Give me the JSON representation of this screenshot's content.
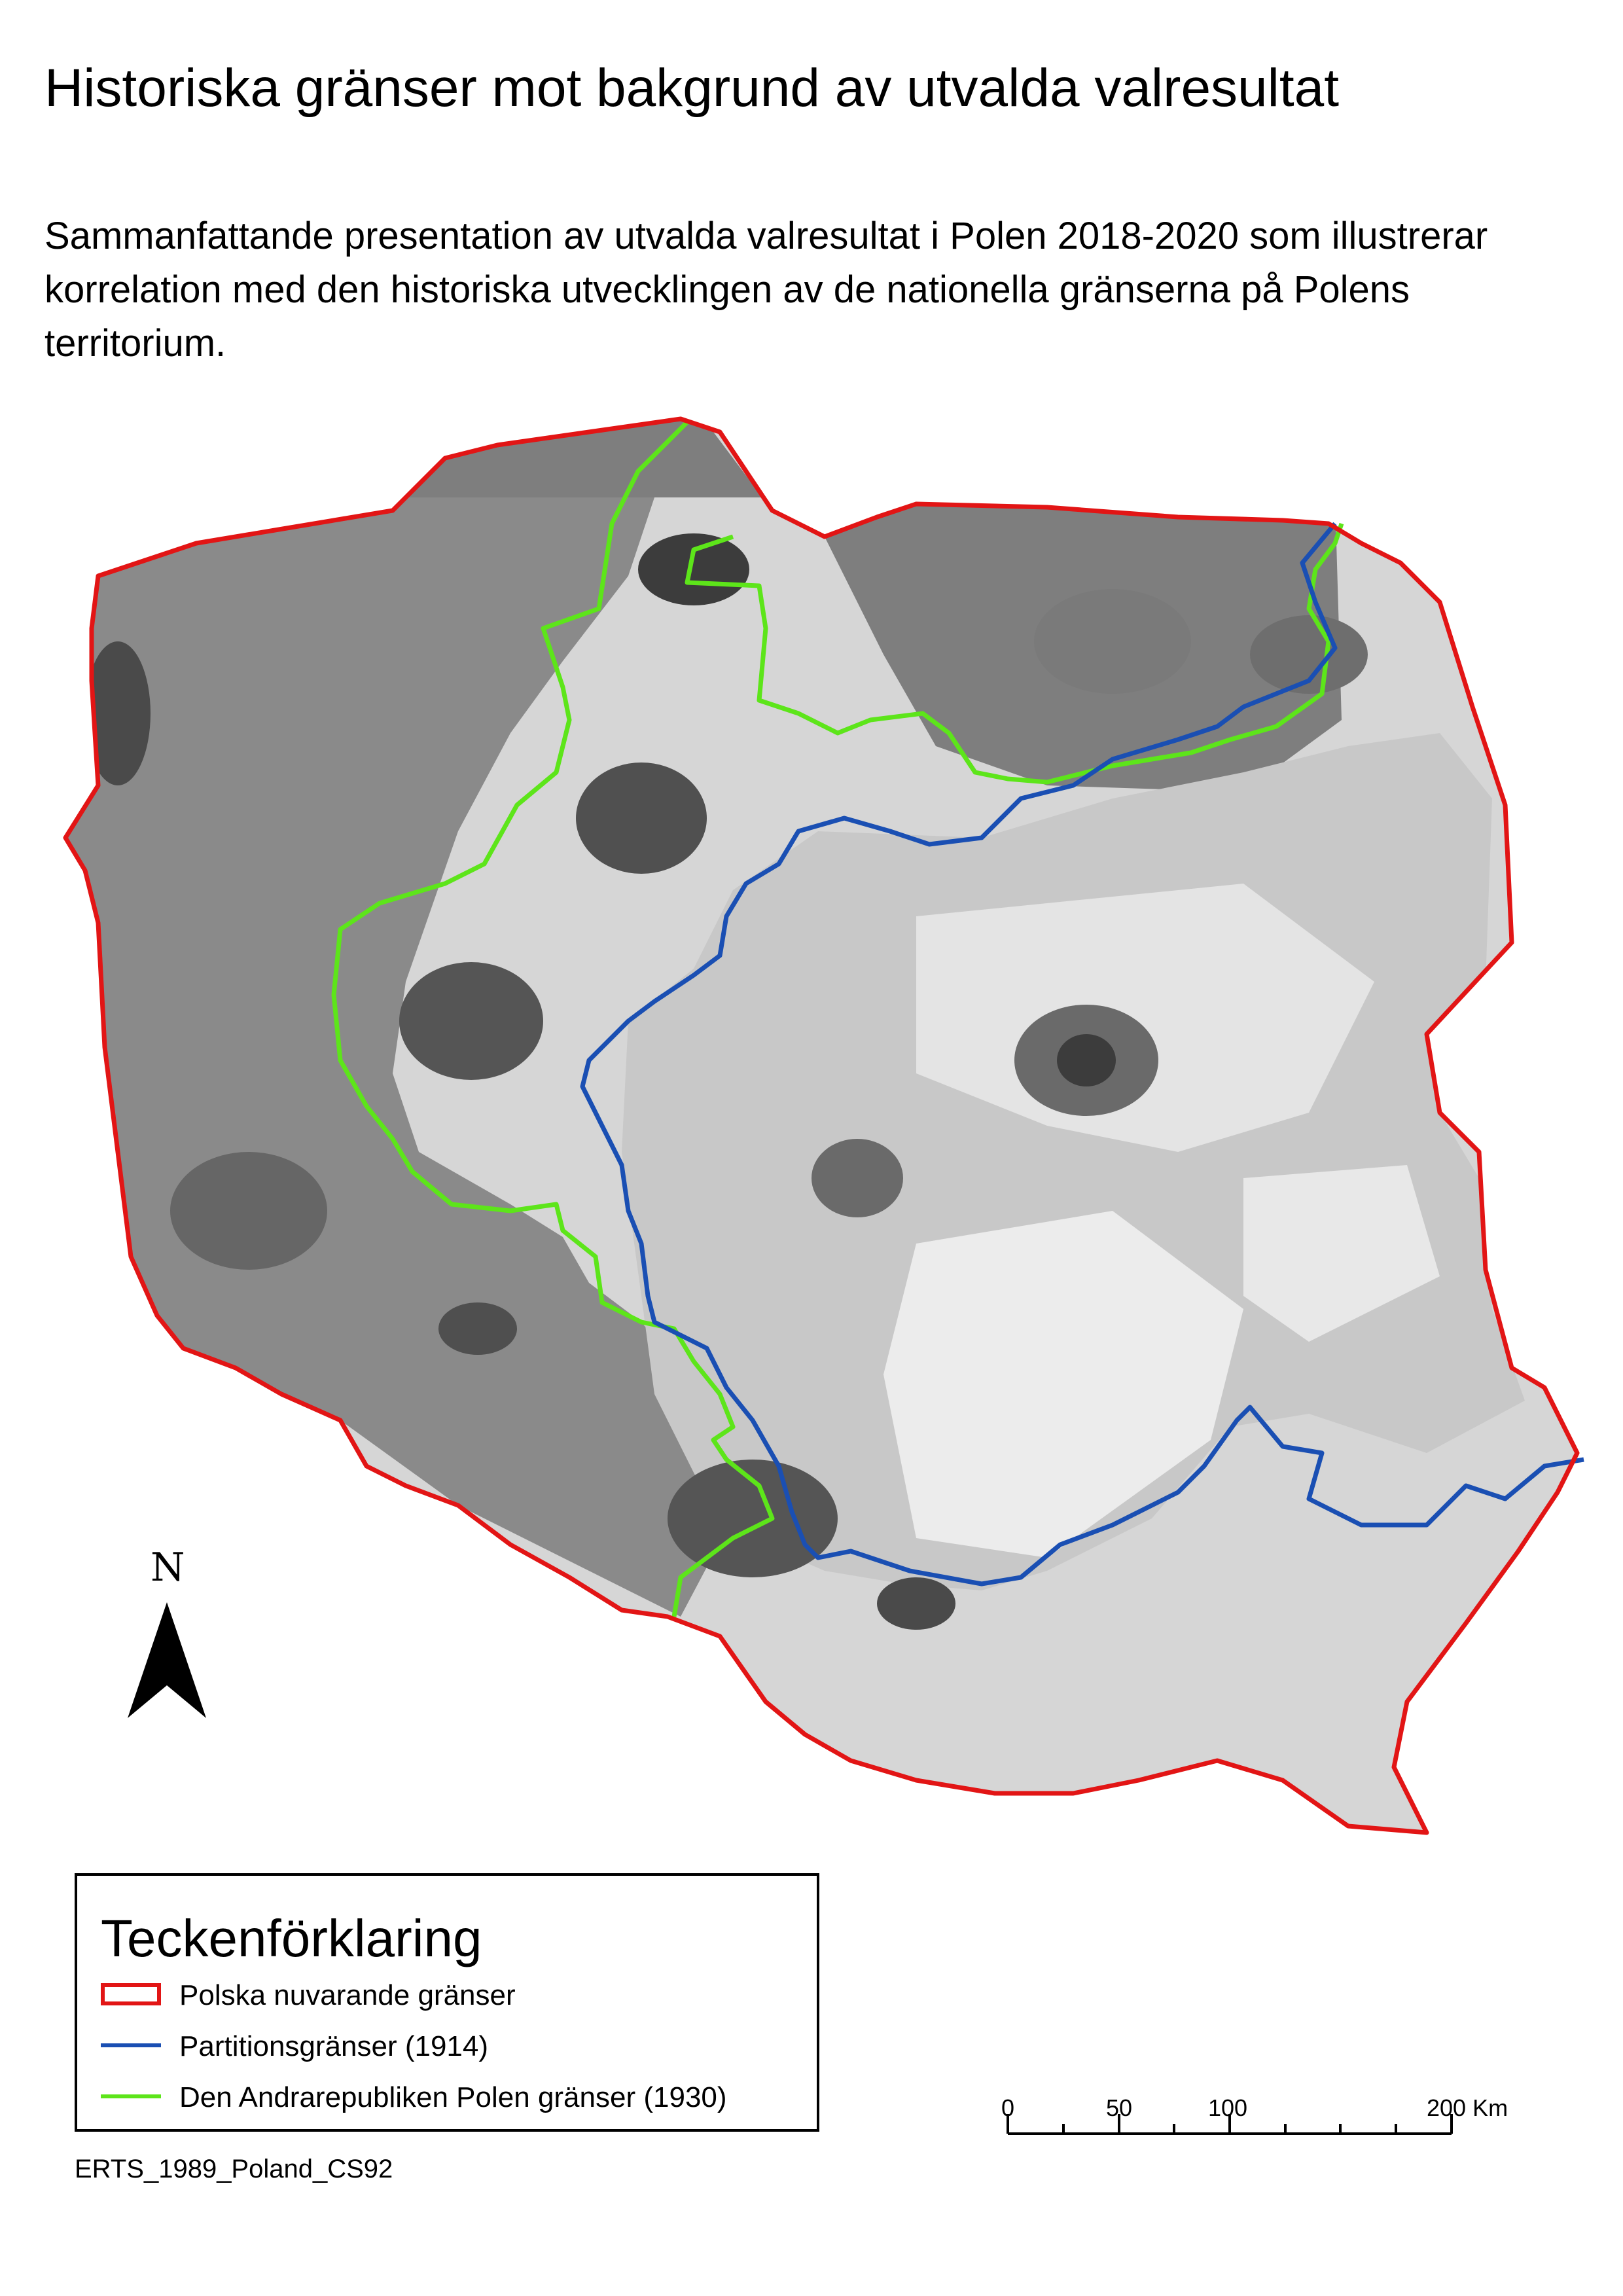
{
  "title": "Historiska gränser mot bakgrund av utvalda valresultat",
  "subtitle": "Sammanfattande presentation av utvalda valresultat i Polen 2018-2020 som illustrerar korrelation med den historiska utvecklingen av de nationella gränserna på Polens territorium.",
  "legend": {
    "title": "Teckenförklaring",
    "items": [
      {
        "label": "Polska nuvarande gränser",
        "color": "#e21515",
        "style": "box"
      },
      {
        "label": "Partitionsgränser (1914)",
        "color": "#1a4fb3",
        "style": "line"
      },
      {
        "label": "Den Andrarepubliken Polen gränser (1930)",
        "color": "#5de51a",
        "style": "line"
      }
    ]
  },
  "north_arrow": {
    "letter": "N",
    "icon": "north-arrow-icon"
  },
  "scale_bar": {
    "ticks": [
      "0",
      "50",
      "100",
      "200 Km"
    ]
  },
  "crs": "ERTS_1989_Poland_CS92",
  "colors": {
    "country_border": "#e21515",
    "partition_1914": "#1a4fb3",
    "republic_1930": "#5de51a",
    "choropleth_dark": "#3c3c3c",
    "choropleth_light": "#f4f4f4"
  }
}
